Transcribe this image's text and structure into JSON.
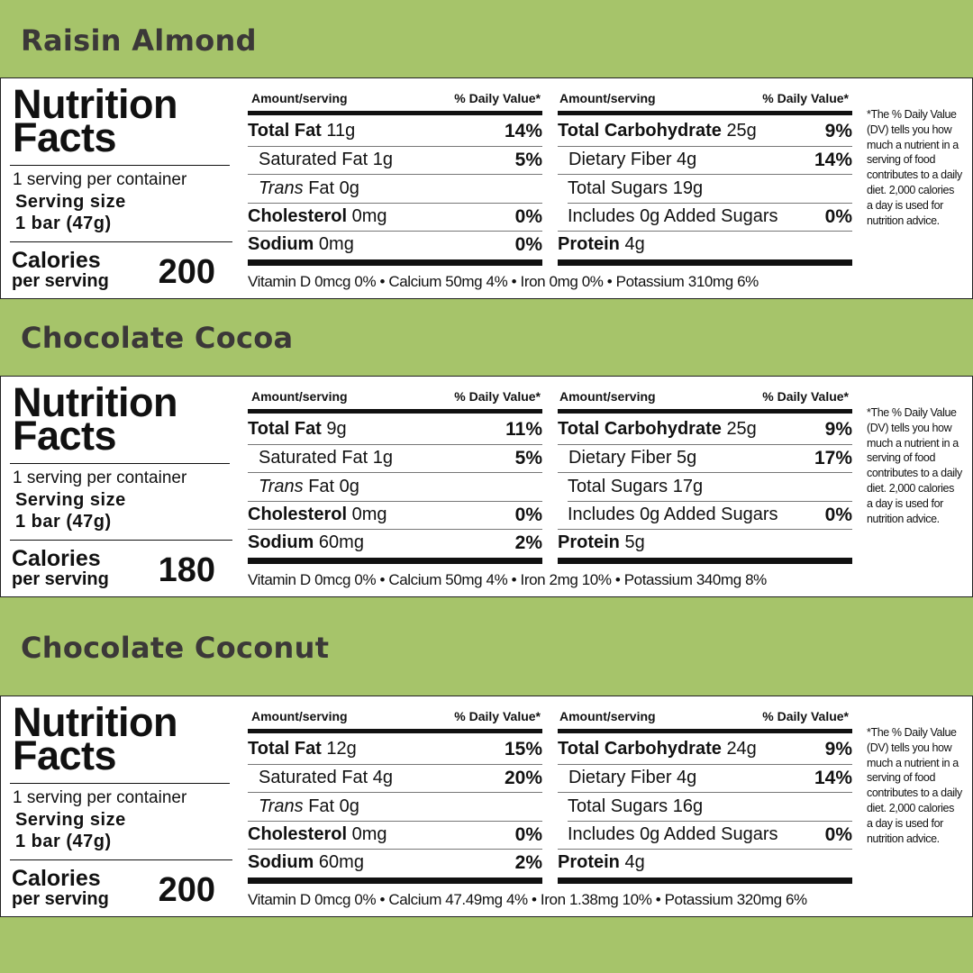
{
  "labels": {
    "nutrition_facts_1": "Nutrition",
    "nutrition_facts_2": "Facts",
    "amount_serving": "Amount/serving",
    "daily_value": "% Daily Value*",
    "calories": "Calories",
    "per_serving": "per serving",
    "serving_size": "Serving size",
    "total_fat": "Total Fat",
    "saturated_fat": "Saturated Fat",
    "trans": "Trans",
    "fat": "Fat",
    "cholesterol": "Cholesterol",
    "sodium": "Sodium",
    "total_carbohydrate": "Total Carbohydrate",
    "dietary_fiber": "Dietary Fiber",
    "total_sugars": "Total Sugars",
    "includes": "Includes",
    "added_sugars": "Added Sugars",
    "protein": "Protein",
    "dv_note": "*The % Daily Value (DV) tells you how much a nutrient in a serving of food contributes to a daily diet. 2,000 calories a day is used for nutrition advice."
  },
  "products": [
    {
      "name": "Raisin Almond",
      "servings_per_container": "1 serving per container",
      "serving_size": "1 bar (47g)",
      "calories": "200",
      "total_fat": "11g",
      "total_fat_dv": "14%",
      "saturated_fat": "1g",
      "saturated_fat_dv": "5%",
      "trans_fat": "0g",
      "cholesterol": "0mg",
      "cholesterol_dv": "0%",
      "sodium": "0mg",
      "sodium_dv": "0%",
      "total_carb": "25g",
      "total_carb_dv": "9%",
      "fiber": "4g",
      "fiber_dv": "14%",
      "total_sugars": "19g",
      "added_sugars": "0g",
      "added_sugars_dv": "0%",
      "protein": "4g",
      "vitamins": "Vitamin D 0mcg 0% • Calcium 50mg 4% • Iron 0mg 0% • Potassium 310mg 6%"
    },
    {
      "name": "Chocolate Cocoa",
      "servings_per_container": "1 serving per container",
      "serving_size": "1 bar (47g)",
      "calories": "180",
      "total_fat": "9g",
      "total_fat_dv": "11%",
      "saturated_fat": "1g",
      "saturated_fat_dv": "5%",
      "trans_fat": "0g",
      "cholesterol": "0mg",
      "cholesterol_dv": "0%",
      "sodium": "60mg",
      "sodium_dv": "2%",
      "total_carb": "25g",
      "total_carb_dv": "9%",
      "fiber": "5g",
      "fiber_dv": "17%",
      "total_sugars": "17g",
      "added_sugars": "0g",
      "added_sugars_dv": "0%",
      "protein": "5g",
      "vitamins": "Vitamin D 0mcg 0% • Calcium 50mg 4% • Iron 2mg 10% • Potassium 340mg 8%"
    },
    {
      "name": "Chocolate Coconut",
      "servings_per_container": "1 serving per container",
      "serving_size": "1 bar (47g)",
      "calories": "200",
      "total_fat": "12g",
      "total_fat_dv": "15%",
      "saturated_fat": "4g",
      "saturated_fat_dv": "20%",
      "trans_fat": "0g",
      "cholesterol": "0mg",
      "cholesterol_dv": "0%",
      "sodium": "60mg",
      "sodium_dv": "2%",
      "total_carb": "24g",
      "total_carb_dv": "9%",
      "fiber": "4g",
      "fiber_dv": "14%",
      "total_sugars": "16g",
      "added_sugars": "0g",
      "added_sugars_dv": "0%",
      "protein": "4g",
      "vitamins": "Vitamin D 0mcg 0% • Calcium 47.49mg 4% • Iron 1.38mg 10% • Potassium 320mg 6%"
    }
  ],
  "colors": {
    "background": "#a6c46a",
    "title": "#3b3838",
    "panel": "#ffffff",
    "ink": "#111111"
  }
}
